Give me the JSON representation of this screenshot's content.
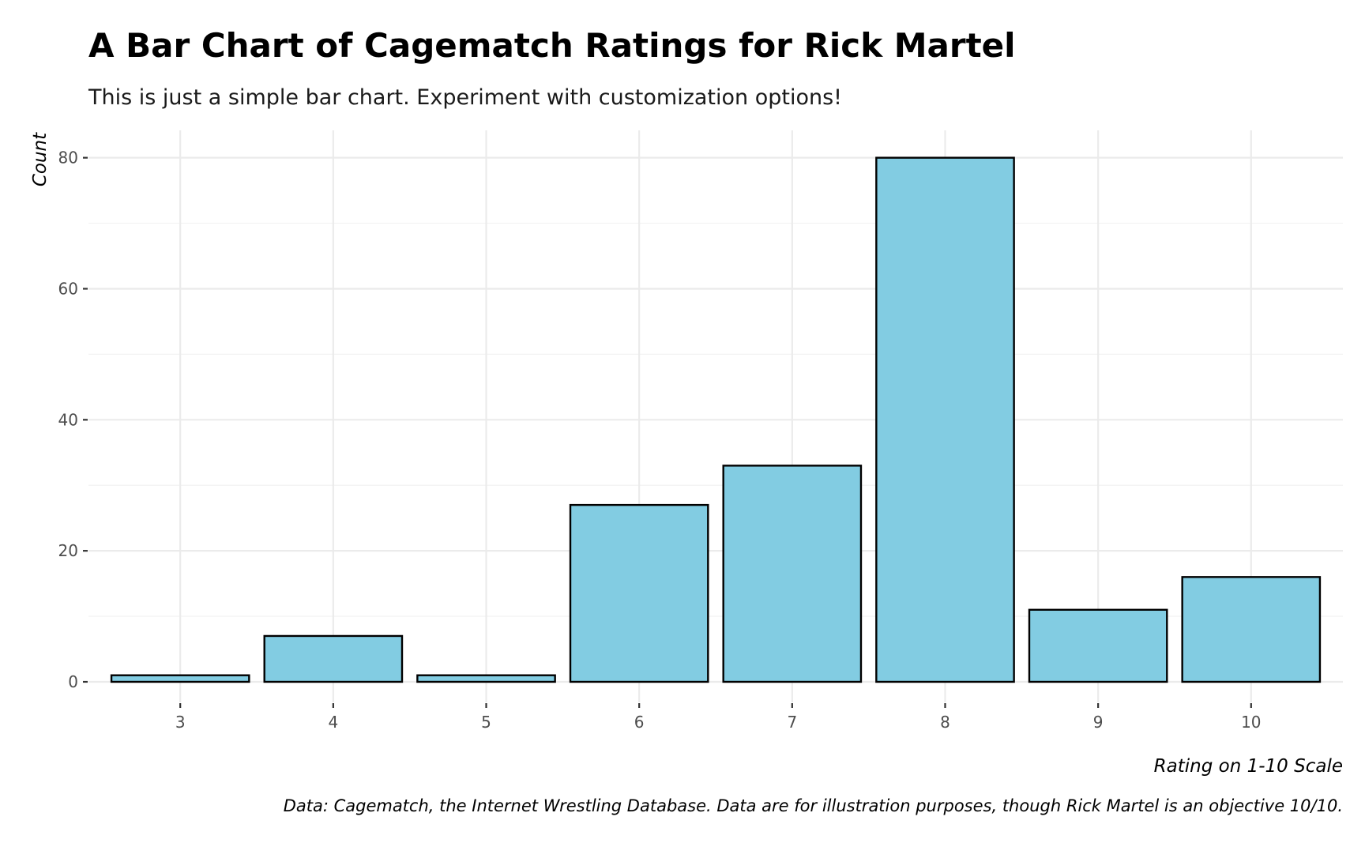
{
  "chart_data": {
    "type": "bar",
    "title": "A Bar Chart of Cagematch Ratings for Rick Martel",
    "subtitle": "This is just a simple bar chart. Experiment with customization options!",
    "xlabel": "Rating on 1-10 Scale",
    "ylabel": "Count",
    "caption": "Data: Cagematch, the Internet Wrestling Database. Data are for illustration purposes, though Rick Martel is an objective 10/10.",
    "categories": [
      "3",
      "4",
      "5",
      "6",
      "7",
      "8",
      "9",
      "10"
    ],
    "values": [
      1,
      7,
      1,
      27,
      33,
      80,
      11,
      16
    ],
    "y_ticks": [
      0,
      20,
      40,
      60,
      80
    ],
    "ylim": [
      0,
      84
    ],
    "grid": true,
    "legend": "none",
    "bar_fill": "#7ecae1",
    "bar_outline": "#000000"
  }
}
